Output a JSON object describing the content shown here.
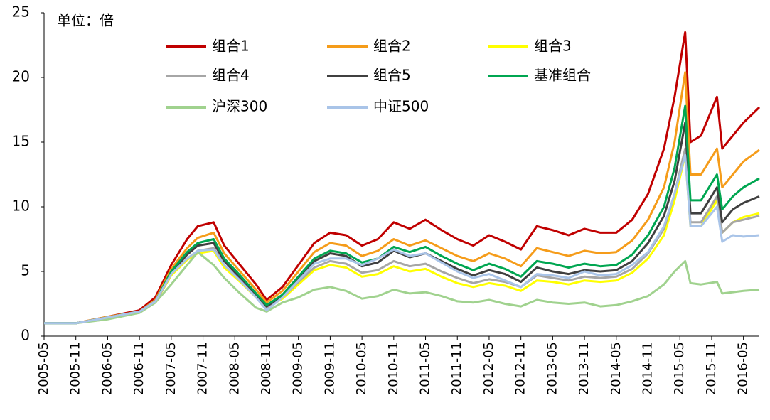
{
  "chart_data": {
    "type": "line",
    "annotation": "单位：倍",
    "x": [
      "2005-05",
      "2005-11",
      "2006-05",
      "2006-11",
      "2007-02",
      "2007-05",
      "2007-08",
      "2007-10",
      "2008-01",
      "2008-03",
      "2008-06",
      "2008-09",
      "2008-11",
      "2009-02",
      "2009-05",
      "2009-08",
      "2009-11",
      "2010-02",
      "2010-05",
      "2010-08",
      "2010-11",
      "2011-02",
      "2011-05",
      "2011-08",
      "2011-11",
      "2012-02",
      "2012-05",
      "2012-08",
      "2012-11",
      "2013-02",
      "2013-05",
      "2013-08",
      "2013-11",
      "2014-02",
      "2014-05",
      "2014-08",
      "2014-11",
      "2015-02",
      "2015-04",
      "2015-06",
      "2015-07",
      "2015-09",
      "2015-12",
      "2016-01",
      "2016-03",
      "2016-05",
      "2016-08"
    ],
    "series": [
      {
        "name": "组合1",
        "color": "#c00000",
        "values": [
          1.0,
          1.0,
          1.5,
          2.0,
          3.0,
          5.5,
          7.5,
          8.5,
          8.8,
          7.0,
          5.5,
          4.0,
          2.8,
          3.8,
          5.5,
          7.2,
          8.0,
          7.8,
          7.0,
          7.5,
          8.8,
          8.3,
          9.0,
          8.2,
          7.5,
          7.0,
          7.8,
          7.3,
          6.7,
          8.5,
          8.2,
          7.8,
          8.3,
          8.0,
          8.0,
          9.0,
          11.0,
          14.5,
          18.5,
          23.5,
          15.0,
          15.5,
          18.5,
          14.5,
          15.5,
          16.5,
          17.7
        ]
      },
      {
        "name": "组合2",
        "color": "#f59c1a",
        "values": [
          1.0,
          1.0,
          1.5,
          1.9,
          2.8,
          5.2,
          6.8,
          7.6,
          8.0,
          6.4,
          5.0,
          3.6,
          2.6,
          3.5,
          5.0,
          6.5,
          7.2,
          7.0,
          6.2,
          6.6,
          7.5,
          7.0,
          7.4,
          6.8,
          6.2,
          5.8,
          6.4,
          6.0,
          5.4,
          6.8,
          6.5,
          6.2,
          6.6,
          6.4,
          6.5,
          7.4,
          9.0,
          11.5,
          15.0,
          20.4,
          12.5,
          12.5,
          14.5,
          11.5,
          12.5,
          13.5,
          14.4
        ]
      },
      {
        "name": "组合3",
        "color": "#ffff00",
        "values": [
          1.0,
          1.0,
          1.4,
          1.85,
          2.6,
          4.7,
          5.9,
          6.4,
          6.6,
          5.3,
          4.2,
          3.0,
          2.2,
          2.9,
          4.0,
          5.1,
          5.5,
          5.3,
          4.6,
          4.8,
          5.4,
          5.0,
          5.2,
          4.6,
          4.1,
          3.8,
          4.1,
          3.9,
          3.5,
          4.3,
          4.2,
          4.0,
          4.3,
          4.2,
          4.3,
          4.9,
          6.0,
          7.8,
          10.5,
          14.0,
          8.5,
          8.5,
          10.5,
          8.0,
          8.8,
          9.2,
          9.5
        ]
      },
      {
        "name": "组合4",
        "color": "#a6a6a6",
        "values": [
          1.0,
          1.0,
          1.4,
          1.85,
          2.6,
          4.8,
          6.0,
          6.6,
          6.8,
          5.5,
          4.3,
          3.1,
          2.2,
          3.0,
          4.2,
          5.3,
          5.8,
          5.6,
          4.9,
          5.1,
          5.8,
          5.4,
          5.6,
          5.0,
          4.5,
          4.1,
          4.4,
          4.2,
          3.8,
          4.7,
          4.5,
          4.3,
          4.6,
          4.5,
          4.6,
          5.2,
          6.4,
          8.3,
          11.0,
          14.5,
          8.8,
          8.8,
          10.8,
          8.0,
          8.8,
          9.0,
          9.3
        ]
      },
      {
        "name": "组合5",
        "color": "#404040",
        "values": [
          1.0,
          1.0,
          1.45,
          1.9,
          2.7,
          4.9,
          6.3,
          7.0,
          7.2,
          5.8,
          4.5,
          3.2,
          2.3,
          3.1,
          4.4,
          5.8,
          6.4,
          6.2,
          5.4,
          5.7,
          6.6,
          6.1,
          6.4,
          5.8,
          5.2,
          4.7,
          5.1,
          4.8,
          4.2,
          5.3,
          5.0,
          4.8,
          5.1,
          5.0,
          5.1,
          5.8,
          7.2,
          9.3,
          12.0,
          16.5,
          9.5,
          9.5,
          11.5,
          8.8,
          9.8,
          10.3,
          10.8
        ]
      },
      {
        "name": "基准组合",
        "color": "#00a651",
        "values": [
          1.0,
          1.0,
          1.45,
          1.9,
          2.7,
          5.0,
          6.5,
          7.2,
          7.5,
          6.0,
          4.7,
          3.3,
          2.4,
          3.2,
          4.6,
          6.0,
          6.6,
          6.4,
          5.7,
          6.0,
          6.9,
          6.5,
          6.9,
          6.2,
          5.6,
          5.1,
          5.6,
          5.2,
          4.6,
          5.8,
          5.6,
          5.3,
          5.6,
          5.4,
          5.5,
          6.3,
          7.8,
          10.0,
          13.0,
          17.8,
          10.5,
          10.5,
          12.5,
          9.8,
          10.8,
          11.5,
          12.2
        ]
      },
      {
        "name": "沪深300",
        "color": "#a0d28e",
        "values": [
          1.0,
          1.0,
          1.3,
          1.8,
          2.6,
          4.0,
          5.5,
          6.5,
          5.5,
          4.5,
          3.3,
          2.2,
          1.9,
          2.6,
          3.0,
          3.6,
          3.8,
          3.5,
          2.9,
          3.1,
          3.6,
          3.3,
          3.4,
          3.1,
          2.7,
          2.6,
          2.8,
          2.5,
          2.3,
          2.8,
          2.6,
          2.5,
          2.6,
          2.3,
          2.4,
          2.7,
          3.1,
          4.0,
          5.0,
          5.8,
          4.1,
          4.0,
          4.2,
          3.3,
          3.4,
          3.5,
          3.6
        ]
      },
      {
        "name": "中证500",
        "color": "#a9c4e8",
        "values": [
          1.0,
          1.0,
          1.45,
          1.9,
          2.7,
          4.8,
          6.0,
          6.6,
          6.7,
          5.5,
          4.3,
          3.0,
          2.0,
          3.0,
          4.3,
          5.6,
          6.0,
          6.0,
          5.5,
          6.0,
          6.7,
          6.2,
          6.4,
          5.7,
          5.0,
          4.5,
          4.8,
          4.3,
          3.8,
          4.8,
          4.7,
          4.5,
          5.0,
          4.7,
          4.8,
          5.5,
          6.5,
          8.5,
          11.0,
          14.0,
          8.5,
          8.5,
          10.0,
          7.3,
          7.8,
          7.7,
          7.8
        ]
      }
    ],
    "xlim": [
      "2005-05",
      "2016-08"
    ],
    "xticks": [
      "2005-05",
      "2005-11",
      "2006-05",
      "2006-11",
      "2007-05",
      "2007-11",
      "2008-05",
      "2008-11",
      "2009-05",
      "2009-11",
      "2010-05",
      "2010-11",
      "2011-05",
      "2011-11",
      "2012-05",
      "2012-11",
      "2013-05",
      "2013-11",
      "2014-05",
      "2014-11",
      "2015-05",
      "2015-11",
      "2016-05"
    ],
    "ylim": [
      0,
      25
    ],
    "yticks": [
      0,
      5,
      10,
      15,
      20,
      25
    ],
    "grid": false,
    "legend": "top"
  }
}
